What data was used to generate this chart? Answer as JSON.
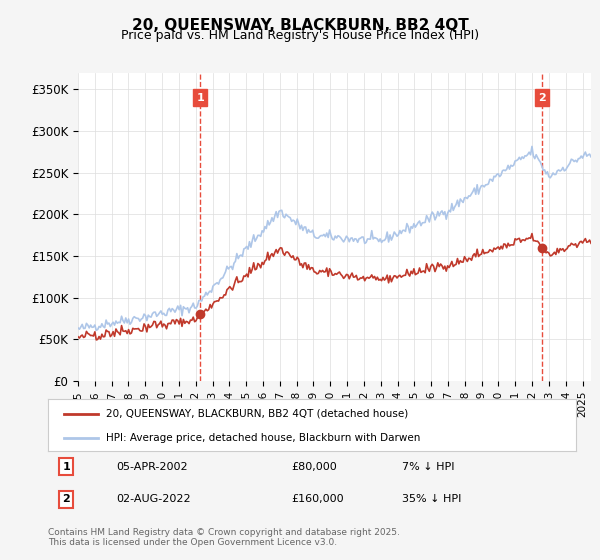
{
  "title": "20, QUEENSWAY, BLACKBURN, BB2 4QT",
  "subtitle": "Price paid vs. HM Land Registry's House Price Index (HPI)",
  "ylabel_ticks": [
    "£0",
    "£50K",
    "£100K",
    "£150K",
    "£200K",
    "£250K",
    "£300K",
    "£350K"
  ],
  "ytick_values": [
    0,
    50000,
    100000,
    150000,
    200000,
    250000,
    300000,
    350000
  ],
  "ylim": [
    0,
    370000
  ],
  "xlim_start": 1995.0,
  "xlim_end": 2025.5,
  "hpi_color": "#aec6e8",
  "price_color": "#c0392b",
  "dashed_color": "#e74c3c",
  "background_color": "#f5f5f5",
  "plot_bg_color": "#ffffff",
  "grid_color": "#dddddd",
  "sale1_x": 2002.27,
  "sale1_y": 80000,
  "sale2_x": 2022.58,
  "sale2_y": 160000,
  "legend_label_price": "20, QUEENSWAY, BLACKBURN, BB2 4QT (detached house)",
  "legend_label_hpi": "HPI: Average price, detached house, Blackburn with Darwen",
  "sale1_date": "05-APR-2002",
  "sale1_price": "£80,000",
  "sale1_hpi": "7% ↓ HPI",
  "sale2_date": "02-AUG-2022",
  "sale2_price": "£160,000",
  "sale2_hpi": "35% ↓ HPI",
  "footer": "Contains HM Land Registry data © Crown copyright and database right 2025.\nThis data is licensed under the Open Government Licence v3.0.",
  "xtick_years": [
    1995,
    1996,
    1997,
    1998,
    1999,
    2000,
    2001,
    2002,
    2003,
    2004,
    2005,
    2006,
    2007,
    2008,
    2009,
    2010,
    2011,
    2012,
    2013,
    2014,
    2015,
    2016,
    2017,
    2018,
    2019,
    2020,
    2021,
    2022,
    2023,
    2024,
    2025
  ]
}
